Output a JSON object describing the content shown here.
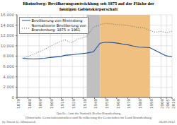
{
  "chart_data": {
    "type": "line",
    "title": "Rheinsberg: Bevölkerungsentwicklung seit 1875 auf der Fläche der\nheutigen Gebietskörperschaft",
    "x": [
      1875,
      1880,
      1885,
      1890,
      1895,
      1900,
      1905,
      1910,
      1913,
      1919,
      1925,
      1933,
      1939,
      1945,
      1950,
      1955,
      1960,
      1965,
      1970,
      1975,
      1980,
      1985,
      1990,
      1995,
      2000,
      2005,
      2010
    ],
    "xlim": [
      1870,
      2010
    ],
    "xticks": [
      1870,
      1880,
      1890,
      1900,
      1910,
      1920,
      1930,
      1940,
      1950,
      1960,
      1970,
      1980,
      1990,
      2000,
      2005,
      2010
    ],
    "ylim": [
      0,
      16000
    ],
    "yticks": [
      0,
      {
        "value": 2000,
        "label": "2.000"
      },
      {
        "value": 4000,
        "label": "4.000"
      },
      {
        "value": 6000,
        "label": "6.000"
      },
      {
        "value": 8000,
        "label": "8.000"
      },
      {
        "value": 10000,
        "label": "10.000"
      },
      {
        "value": 12000,
        "label": "12.000"
      },
      {
        "value": 14000,
        "label": "14.000"
      },
      {
        "value": 16000,
        "label": "16.000"
      }
    ],
    "series": [
      {
        "name": "Bevölkerung von Rheinsberg",
        "color": "#1f4e9c",
        "line_style": "solid",
        "values": [
          7600,
          7500,
          7450,
          7500,
          7600,
          7750,
          7850,
          7950,
          8150,
          8250,
          8400,
          8600,
          8850,
          10500,
          10700,
          10650,
          10550,
          10350,
          10200,
          9950,
          9750,
          9700,
          9650,
          9100,
          8550,
          8050,
          7900
        ]
      },
      {
        "name": "Normalisierte Bevölkerung von\nBrandenburg: 1875 = 1961",
        "color": "#555555",
        "line_style": "dotted",
        "values": [
          7600,
          7950,
          8350,
          8850,
          9350,
          9900,
          10450,
          10900,
          11200,
          10600,
          11300,
          11800,
          13600,
          14100,
          14350,
          14250,
          14100,
          14050,
          13950,
          13750,
          13500,
          13450,
          12950,
          12650,
          12800,
          12550,
          12800
        ]
      }
    ],
    "spans": [
      {
        "start": 1933,
        "end": 1945,
        "color": "#c0c0c0"
      },
      {
        "start": 1945,
        "end": 1990,
        "color": "#f0c080"
      }
    ],
    "grid": true,
    "legend": "upper left",
    "source": [
      "Quelle: Amt für Statistik Berlin-Brandenburg",
      "Historische Gemeindestatistiken und Bevölkerung der Gemeinden im Land Brandenburg"
    ],
    "footer": {
      "left": "by Simon G. Ohnesorck",
      "right": "26.09.2012"
    }
  }
}
